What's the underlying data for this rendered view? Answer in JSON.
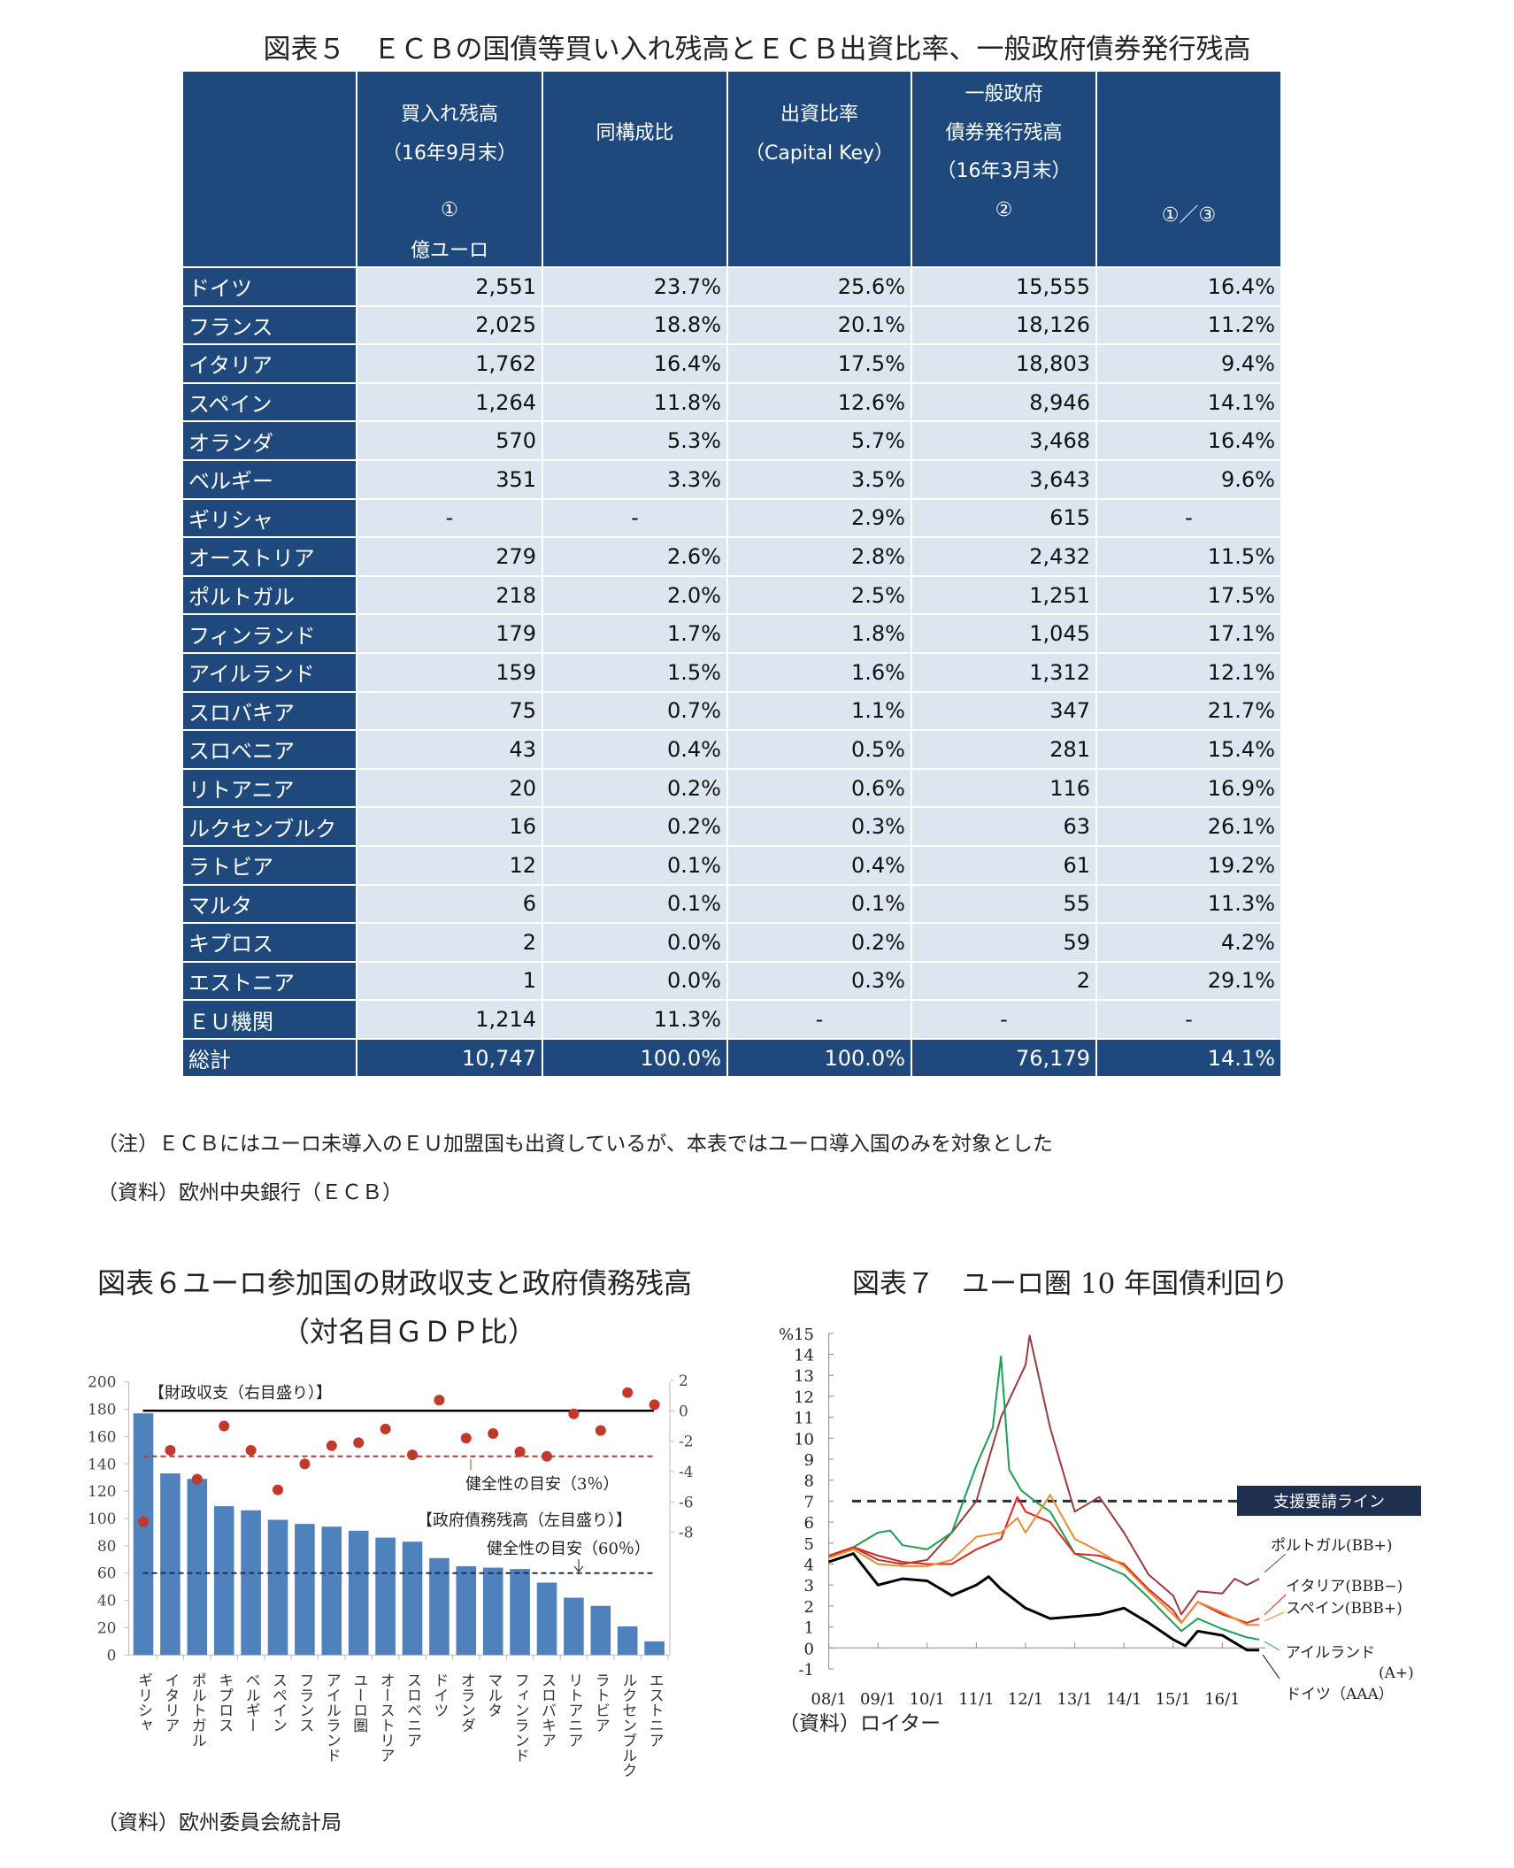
{
  "fig5": {
    "title": "図表５　ＥＣＢの国債等買い入れ残高とＥＣＢ出資比率、一般政府債券発行残高",
    "header": {
      "col1": [
        "買入れ残高",
        "（16年9月末）",
        "①",
        "億ユーロ"
      ],
      "col2": [
        "同構成比"
      ],
      "col3": [
        "出資比率",
        "（Capital Key）"
      ],
      "col4": [
        "一般政府",
        "債券発行残高",
        "（16年3月末）",
        "②"
      ],
      "col5": [
        "①／③"
      ]
    },
    "rows": [
      [
        "ドイツ",
        "2,551",
        "23.7%",
        "25.6%",
        "15,555",
        "16.4%"
      ],
      [
        "フランス",
        "2,025",
        "18.8%",
        "20.1%",
        "18,126",
        "11.2%"
      ],
      [
        "イタリア",
        "1,762",
        "16.4%",
        "17.5%",
        "18,803",
        "9.4%"
      ],
      [
        "スペイン",
        "1,264",
        "11.8%",
        "12.6%",
        "8,946",
        "14.1%"
      ],
      [
        "オランダ",
        "570",
        "5.3%",
        "5.7%",
        "3,468",
        "16.4%"
      ],
      [
        "ベルギー",
        "351",
        "3.3%",
        "3.5%",
        "3,643",
        "9.6%"
      ],
      [
        "ギリシャ",
        "-",
        "-",
        "2.9%",
        "615",
        "-"
      ],
      [
        "オーストリア",
        "279",
        "2.6%",
        "2.8%",
        "2,432",
        "11.5%"
      ],
      [
        "ポルトガル",
        "218",
        "2.0%",
        "2.5%",
        "1,251",
        "17.5%"
      ],
      [
        "フィンランド",
        "179",
        "1.7%",
        "1.8%",
        "1,045",
        "17.1%"
      ],
      [
        "アイルランド",
        "159",
        "1.5%",
        "1.6%",
        "1,312",
        "12.1%"
      ],
      [
        "スロバキア",
        "75",
        "0.7%",
        "1.1%",
        "347",
        "21.7%"
      ],
      [
        "スロベニア",
        "43",
        "0.4%",
        "0.5%",
        "281",
        "15.4%"
      ],
      [
        "リトアニア",
        "20",
        "0.2%",
        "0.6%",
        "116",
        "16.9%"
      ],
      [
        "ルクセンブルク",
        "16",
        "0.2%",
        "0.3%",
        "63",
        "26.1%"
      ],
      [
        "ラトビア",
        "12",
        "0.1%",
        "0.4%",
        "61",
        "19.2%"
      ],
      [
        "マルタ",
        "6",
        "0.1%",
        "0.1%",
        "55",
        "11.3%"
      ],
      [
        "キプロス",
        "2",
        "0.0%",
        "0.2%",
        "59",
        "4.2%"
      ],
      [
        "エストニア",
        "1",
        "0.0%",
        "0.3%",
        "2",
        "29.1%"
      ],
      [
        "ＥＵ機関",
        "1,214",
        "11.3%",
        "-",
        "-",
        "-"
      ]
    ],
    "total": [
      "総計",
      "10,747",
      "100.0%",
      "100.0%",
      "76,179",
      "14.1%"
    ],
    "note": "（注）ＥＣＢにはユーロ未導入のＥＵ加盟国も出資しているが、本表ではユーロ導入国のみを対象とした",
    "source": "（資料）欧州中央銀行（ＥＣＢ）"
  },
  "fig6": {
    "title_line1": "図表６ユーロ参加国の財政収支と政府債務残高",
    "title_line2": "（対名目ＧＤＰ比）",
    "source": "（資料）欧州委員会統計局"
  },
  "fig7": {
    "title": "図表７　ユーロ圏 10 年国債利回り",
    "source": "（資料）ロイター"
  },
  "chart_data": [
    {
      "type": "bar",
      "categories": [
        "ギリシャ",
        "イタリア",
        "ポルトガル",
        "キプロス",
        "ベルギー",
        "スペイン",
        "フランス",
        "アイルランド",
        "ユーロ圏",
        "オーストリア",
        "スロベニア",
        "ドイツ",
        "オランダ",
        "マルタ",
        "フィンランド",
        "スロバキア",
        "リトアニア",
        "ラトビア",
        "ルクセンブルク",
        "エストニア"
      ],
      "series": [
        {
          "name": "【政府債務残高（左目盛り）】",
          "axis": "left",
          "mark": "bar",
          "color": "#4f81bd",
          "values": [
            177,
            133,
            129,
            109,
            106,
            99,
            96,
            94,
            91,
            86,
            83,
            71,
            65,
            64,
            63,
            53,
            42,
            36,
            21,
            10
          ]
        },
        {
          "name": "【財政収支（右目盛り）】",
          "axis": "right",
          "mark": "dot",
          "color": "#c0392b",
          "values": [
            -7.3,
            -2.6,
            -4.5,
            -1.0,
            -2.6,
            -5.2,
            -3.5,
            -2.3,
            -2.1,
            -1.2,
            -2.9,
            0.7,
            -1.8,
            -1.5,
            -2.7,
            -3.0,
            -0.2,
            -1.3,
            1.2,
            0.4
          ]
        }
      ],
      "y_left": {
        "range": [
          0,
          200
        ],
        "ticks": [
          0,
          20,
          40,
          60,
          80,
          100,
          120,
          140,
          160,
          180,
          200
        ]
      },
      "y_right": {
        "range": [
          -18,
          2
        ],
        "ticks": [
          2,
          0,
          -2,
          -4,
          -6,
          -8
        ]
      },
      "reference_lines": [
        {
          "label": "健全性の目安（3％）",
          "axis": "right",
          "value": -3,
          "color": "#c0392b",
          "style": "dashed"
        },
        {
          "label": "健全性の目安（60％）",
          "axis": "left",
          "value": 60,
          "color": "#1f2f4f",
          "style": "dashed"
        },
        {
          "label": "",
          "axis": "right",
          "value": 0,
          "color": "#000000",
          "style": "solid"
        }
      ]
    },
    {
      "type": "line",
      "y_unit": "%",
      "ylim": [
        -1,
        15
      ],
      "y_ticks": [
        -1,
        0,
        1,
        2,
        3,
        4,
        5,
        6,
        7,
        8,
        9,
        10,
        11,
        12,
        13,
        14,
        15
      ],
      "x_ticks": [
        "08/1",
        "09/1",
        "10/1",
        "11/1",
        "12/1",
        "13/1",
        "14/1",
        "15/1",
        "16/1"
      ],
      "reference_line": {
        "label": "支援要請ライン",
        "value": 7,
        "color": "#1f2f4f"
      },
      "series": [
        {
          "name": "ポルトガル(BB+)",
          "color": "#9b3b3b",
          "x": [
            "2008-01",
            "2008-07",
            "2009-01",
            "2009-07",
            "2010-01",
            "2010-07",
            "2011-01",
            "2011-07",
            "2012-01",
            "2012-02",
            "2012-07",
            "2013-01",
            "2013-07",
            "2014-01",
            "2014-07",
            "2015-01",
            "2015-03",
            "2015-07",
            "2016-01",
            "2016-04",
            "2016-07",
            "2016-10"
          ],
          "y": [
            4.3,
            4.8,
            4.2,
            4.0,
            4.2,
            5.5,
            7.0,
            11.0,
            13.5,
            14.9,
            10.5,
            6.5,
            7.2,
            5.5,
            3.5,
            2.5,
            1.6,
            2.7,
            2.6,
            3.3,
            3.0,
            3.3
          ]
        },
        {
          "name": "アイルランド(A+)",
          "color": "#1aa050",
          "x": [
            "2008-01",
            "2008-07",
            "2009-01",
            "2009-04",
            "2009-07",
            "2010-01",
            "2010-07",
            "2011-01",
            "2011-05",
            "2011-07",
            "2011-09",
            "2011-12",
            "2012-04",
            "2012-07",
            "2013-01",
            "2013-07",
            "2014-01",
            "2014-07",
            "2015-01",
            "2015-03",
            "2015-07",
            "2016-01",
            "2016-07",
            "2016-10"
          ],
          "y": [
            4.3,
            4.8,
            5.5,
            5.6,
            4.9,
            4.7,
            5.5,
            8.7,
            10.5,
            13.9,
            8.5,
            7.5,
            6.9,
            6.5,
            4.5,
            4.0,
            3.5,
            2.4,
            1.2,
            0.8,
            1.4,
            0.9,
            0.5,
            0.4
          ]
        },
        {
          "name": "イタリア(BBB−)",
          "color": "#e8231c",
          "x": [
            "2008-01",
            "2008-07",
            "2009-01",
            "2009-07",
            "2010-01",
            "2010-07",
            "2011-01",
            "2011-07",
            "2011-11",
            "2012-01",
            "2012-07",
            "2013-01",
            "2013-07",
            "2014-01",
            "2014-07",
            "2015-01",
            "2015-03",
            "2015-07",
            "2016-01",
            "2016-07",
            "2016-10"
          ],
          "y": [
            4.4,
            4.8,
            4.4,
            4.1,
            4.0,
            4.0,
            4.7,
            5.2,
            7.2,
            6.5,
            6.0,
            4.5,
            4.4,
            4.0,
            2.8,
            1.8,
            1.2,
            2.2,
            1.6,
            1.2,
            1.4
          ]
        },
        {
          "name": "スペイン(BBB+)",
          "color": "#f08a30",
          "x": [
            "2008-01",
            "2008-07",
            "2009-01",
            "2009-07",
            "2010-01",
            "2010-07",
            "2011-01",
            "2011-07",
            "2011-11",
            "2012-01",
            "2012-07",
            "2013-01",
            "2013-07",
            "2014-01",
            "2014-07",
            "2015-01",
            "2015-03",
            "2015-07",
            "2016-01",
            "2016-07",
            "2016-10"
          ],
          "y": [
            4.3,
            4.7,
            4.0,
            3.9,
            3.9,
            4.2,
            5.3,
            5.5,
            6.2,
            5.5,
            7.3,
            5.2,
            4.6,
            3.9,
            2.7,
            1.6,
            1.2,
            2.2,
            1.7,
            1.1,
            1.1
          ]
        },
        {
          "name": "ドイツ（AAA）",
          "color": "#000000",
          "x": [
            "2008-01",
            "2008-07",
            "2009-01",
            "2009-07",
            "2010-01",
            "2010-07",
            "2011-01",
            "2011-04",
            "2011-07",
            "2012-01",
            "2012-07",
            "2013-01",
            "2013-07",
            "2014-01",
            "2014-07",
            "2015-01",
            "2015-04",
            "2015-07",
            "2016-01",
            "2016-07",
            "2016-10"
          ],
          "y": [
            4.1,
            4.5,
            3.0,
            3.3,
            3.2,
            2.5,
            3.0,
            3.4,
            2.8,
            1.9,
            1.4,
            1.5,
            1.6,
            1.9,
            1.2,
            0.4,
            0.1,
            0.8,
            0.6,
            -0.1,
            -0.1
          ]
        }
      ]
    }
  ]
}
